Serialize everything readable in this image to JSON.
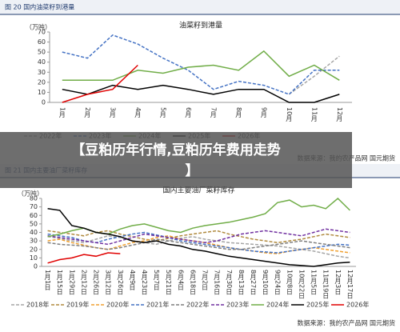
{
  "banner": "【豆粕历年行情,豆粕历年费用走势】",
  "chart_data": [
    {
      "type": "line",
      "caption": "图 20 国内油菜籽到港量",
      "title": "油菜籽到港量",
      "y_unit": "（万吨）",
      "source": "数据来源：我的农产品网 国元期货",
      "categories": [
        "1月",
        "2月",
        "3月",
        "4月",
        "5月",
        "6月",
        "7月",
        "8月",
        "9月",
        "10月",
        "11月",
        "12月"
      ],
      "ylim": [
        0,
        70
      ],
      "yticks": [
        0,
        10,
        20,
        30,
        40,
        50,
        60,
        70
      ],
      "series": [
        {
          "name": "2022年",
          "color": "#a5a5a5",
          "dash": true,
          "values": [
            null,
            null,
            null,
            null,
            null,
            null,
            null,
            null,
            null,
            8,
            26,
            46
          ]
        },
        {
          "name": "2023年",
          "color": "#4472c4",
          "dash": true,
          "values": [
            50,
            44,
            67,
            58,
            44,
            32,
            13,
            21,
            17,
            8,
            32,
            32
          ]
        },
        {
          "name": "2024年",
          "color": "#70ad47",
          "dash": false,
          "values": [
            22,
            22,
            22,
            32,
            29,
            35,
            37,
            32,
            51,
            26,
            37,
            22
          ]
        },
        {
          "name": "2025年",
          "color": "#000000",
          "dash": false,
          "values": [
            13,
            8,
            17,
            13,
            17,
            13,
            8,
            13,
            13,
            0,
            0,
            8
          ]
        },
        {
          "name": "2026年",
          "color": "#e00000",
          "dash": false,
          "values": [
            0,
            8,
            13,
            37,
            null,
            null,
            null,
            null,
            null,
            null,
            null,
            null
          ]
        }
      ]
    },
    {
      "type": "line",
      "caption": "图 21 国内主要油厂菜籽库存",
      "title": "国内主要油厂菜籽库存",
      "y_unit": "（万吨）",
      "source": "数据来源：我的农产品网 国元期货",
      "categories": [
        "1月1日",
        "1月15日",
        "1月29日",
        "2月12日",
        "2月26日",
        "3月12日",
        "3月26日",
        "4月9日",
        "4月23日",
        "5月7日",
        "5月21日",
        "6月4日",
        "6月18日",
        "7月2日",
        "7月16日",
        "7月30日",
        "8月13日",
        "8月27日",
        "9月10日",
        "9月24日",
        "10月8日",
        "10月22日",
        "11月5日",
        "11月19日",
        "12月3日",
        "12月17日"
      ],
      "ylim": [
        0,
        80
      ],
      "yticks": [
        0,
        10,
        20,
        30,
        40,
        50,
        60,
        70,
        80
      ],
      "series": [
        {
          "name": "2018年",
          "color": "#a5a5a5",
          "dash": true,
          "values": [
            35,
            33,
            30,
            28,
            32,
            36,
            34,
            30,
            28,
            26,
            30,
            33,
            35,
            32,
            30,
            28,
            27,
            26,
            25,
            24,
            22,
            20,
            18,
            15,
            12,
            10
          ]
        },
        {
          "name": "2019年",
          "color": "#b08a3e",
          "dash": true,
          "values": [
            42,
            40,
            38,
            36,
            40,
            42,
            38,
            35,
            32,
            30,
            33,
            36,
            38,
            40,
            42,
            38,
            35,
            32,
            30,
            28,
            30,
            32,
            35,
            38,
            36,
            34
          ]
        },
        {
          "name": "2020年",
          "color": "#f0a030",
          "dash": true,
          "values": [
            30,
            32,
            28,
            25,
            22,
            20,
            24,
            28,
            30,
            34,
            36,
            32,
            30,
            28,
            25,
            22,
            20,
            18,
            16,
            15,
            18,
            20,
            22,
            20,
            18,
            16
          ]
        },
        {
          "name": "2021年",
          "color": "#4472c4",
          "dash": true,
          "values": [
            38,
            36,
            34,
            30,
            28,
            32,
            35,
            38,
            40,
            37,
            34,
            30,
            28,
            26,
            24,
            22,
            20,
            18,
            17,
            16,
            18,
            20,
            22,
            24,
            26,
            25
          ]
        },
        {
          "name": "2022年",
          "color": "#7f7f7f",
          "dash": true,
          "values": [
            28,
            26,
            25,
            24,
            22,
            20,
            22,
            25,
            28,
            32,
            30,
            28,
            26,
            24,
            22,
            20,
            20,
            22,
            24,
            26,
            28,
            30,
            28,
            26,
            24,
            22
          ]
        },
        {
          "name": "2023年",
          "color": "#7030a0",
          "dash": true,
          "values": [
            36,
            34,
            32,
            30,
            28,
            26,
            30,
            34,
            38,
            36,
            34,
            32,
            30,
            28,
            30,
            34,
            38,
            40,
            42,
            40,
            38,
            36,
            40,
            44,
            42,
            40
          ]
        },
        {
          "name": "2024年",
          "color": "#70ad47",
          "dash": false,
          "values": [
            35,
            38,
            42,
            45,
            40,
            38,
            44,
            48,
            50,
            46,
            42,
            40,
            45,
            48,
            50,
            52,
            55,
            58,
            62,
            75,
            78,
            70,
            72,
            68,
            80,
            66
          ]
        },
        {
          "name": "2025年",
          "color": "#000000",
          "dash": false,
          "values": [
            68,
            66,
            48,
            45,
            40,
            38,
            35,
            30,
            28,
            30,
            26,
            24,
            20,
            18,
            15,
            12,
            10,
            8,
            6,
            4,
            2,
            1,
            0,
            2,
            4,
            5
          ]
        },
        {
          "name": "2026年",
          "color": "#e00000",
          "dash": false,
          "values": [
            4,
            8,
            10,
            14,
            12,
            16,
            15,
            null,
            null,
            null,
            null,
            null,
            null,
            null,
            null,
            null,
            null,
            null,
            null,
            null,
            null,
            null,
            null,
            null,
            null,
            null
          ]
        }
      ]
    }
  ]
}
